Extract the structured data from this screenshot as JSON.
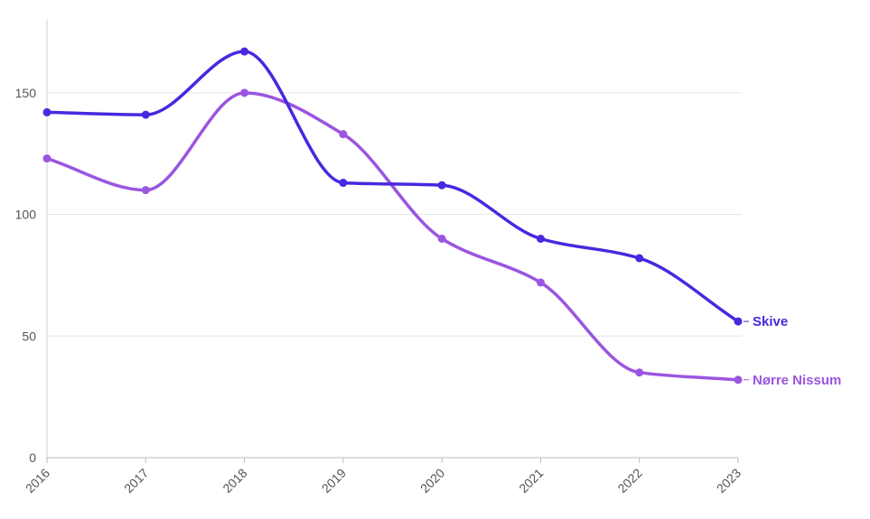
{
  "chart_data": {
    "type": "line",
    "title": "",
    "xlabel": "",
    "ylabel": "",
    "x": [
      "2016",
      "2017",
      "2018",
      "2019",
      "2020",
      "2021",
      "2022",
      "2023"
    ],
    "ylim": [
      0,
      180
    ],
    "yticks": [
      0,
      50,
      100,
      150
    ],
    "grid": true,
    "legend": "labels at line ends (right)",
    "series": [
      {
        "name": "Skive",
        "color": "#4A27E0",
        "values": [
          142,
          141,
          167,
          113,
          112,
          90,
          82,
          56
        ]
      },
      {
        "name": "Nørre Nissum",
        "color": "#9B55E0",
        "values": [
          123,
          110,
          150,
          133,
          90,
          72,
          35,
          32
        ]
      }
    ]
  }
}
